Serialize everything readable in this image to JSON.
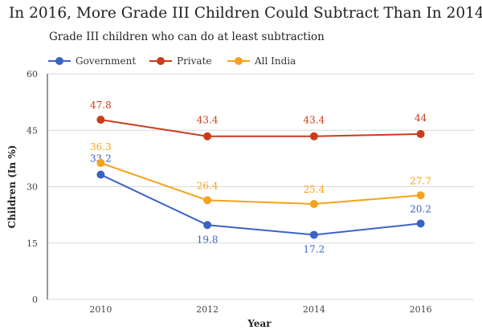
{
  "header": {
    "title": "In 2016, More Grade III Children Could Subtract Than In 2014",
    "subtitle": "Grade III children who can do at least subtraction"
  },
  "colors": {
    "Government": "#3b63c5",
    "Private": "#cc3a1a",
    "All India": "#f5a31a",
    "grid": "#d9d9d9"
  },
  "chart_data": {
    "type": "line",
    "title": "In 2016, More Grade III Children Could Subtract Than In 2014",
    "subtitle": "Grade III children who can do at least subtraction",
    "xlabel": "Year",
    "ylabel": "Children (In %)",
    "categories": [
      "2010",
      "2012",
      "2014",
      "2016"
    ],
    "ylim": [
      0,
      60
    ],
    "yticks": [
      0,
      15,
      30,
      45,
      60
    ],
    "grid": true,
    "legend": "top-left",
    "series": [
      {
        "name": "Government",
        "values": [
          33.2,
          19.8,
          17.2,
          20.2
        ],
        "labels": [
          "33.2",
          "19.8",
          "17.2",
          "20.2"
        ]
      },
      {
        "name": "Private",
        "values": [
          47.8,
          43.4,
          43.4,
          44
        ],
        "labels": [
          "47.8",
          "43.4",
          "43.4",
          "44"
        ]
      },
      {
        "name": "All India",
        "values": [
          36.3,
          26.4,
          25.4,
          27.7
        ],
        "labels": [
          "36.3",
          "26.4",
          "25.4",
          "27.7"
        ]
      }
    ]
  }
}
